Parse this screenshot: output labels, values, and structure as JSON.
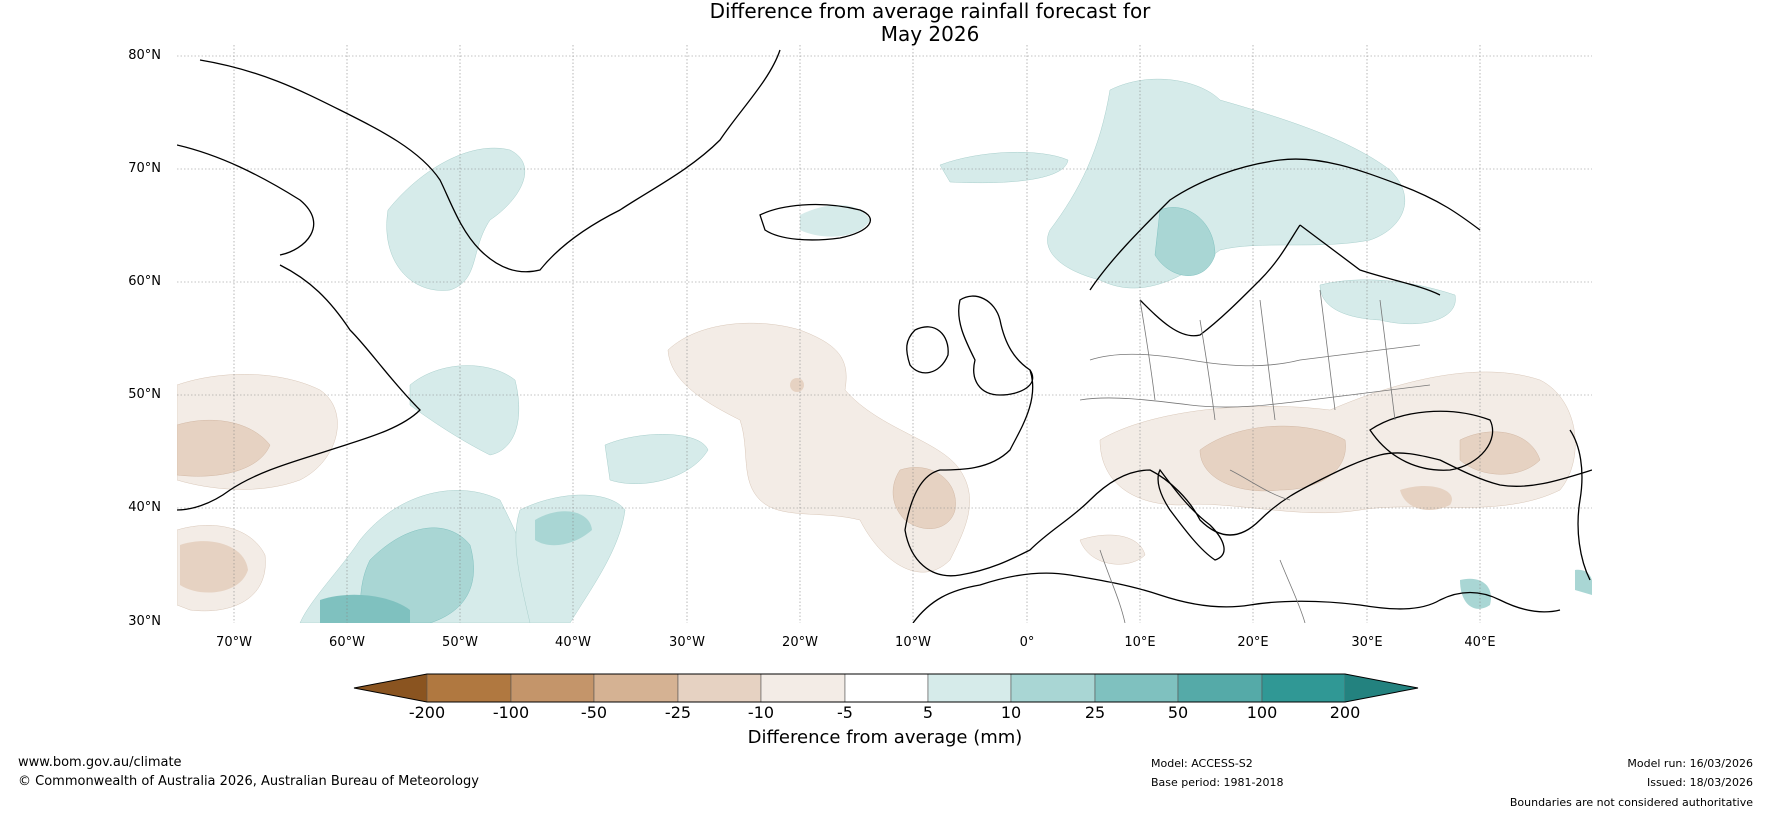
{
  "title": {
    "line1": "Difference from average rainfall forecast for",
    "line2": "May 2026"
  },
  "map": {
    "lat_labels": [
      "80°N",
      "70°N",
      "60°N",
      "50°N",
      "40°N",
      "30°N"
    ],
    "lon_labels": [
      "70°W",
      "60°W",
      "50°W",
      "40°W",
      "30°W",
      "20°W",
      "10°W",
      "0°",
      "10°E",
      "20°E",
      "30°E",
      "40°E"
    ],
    "extent": {
      "lon_min": -75,
      "lon_max": 50,
      "lat_min": 30,
      "lat_max": 81
    }
  },
  "legend": {
    "title": "Difference from average (mm)",
    "ticks": [
      "-200",
      "-100",
      "-50",
      "-25",
      "-10",
      "-5",
      "5",
      "10",
      "25",
      "50",
      "100",
      "200"
    ],
    "colors": [
      "#8a5420",
      "#b07840",
      "#c4956a",
      "#d5b293",
      "#e6d2c2",
      "#f3ece6",
      "#ffffff",
      "#d6ebea",
      "#a9d6d4",
      "#7fc1bf",
      "#55aaa8",
      "#309895",
      "#23827f"
    ]
  },
  "footer": {
    "website": "www.bom.gov.au/climate",
    "copyright": "© Commonwealth of Australia 2026, Australian Bureau of Meteorology",
    "model": "Model: ACCESS-S2",
    "base_period": "Base period: 1981-2018",
    "model_run": "Model run: 16/03/2026",
    "issued": "Issued: 18/03/2026",
    "disclaimer": "Boundaries are not considered authoritative"
  }
}
